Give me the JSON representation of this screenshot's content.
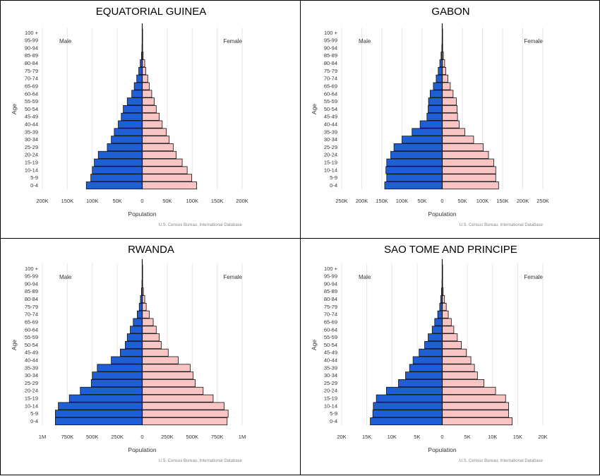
{
  "chart_data": [
    {
      "type": "bar",
      "title": "EQUATORIAL GUINEA",
      "male_label": "Male",
      "female_label": "Female",
      "ylabel": "Age",
      "xlabel": "Population",
      "source": "U.S. Census Bureau, International Database",
      "xlim": [
        -200000,
        200000
      ],
      "xticks": [
        -200000,
        -150000,
        -100000,
        -50000,
        0,
        50000,
        100000,
        150000,
        200000
      ],
      "xtick_labels": [
        "200K",
        "150K",
        "100K",
        "50K",
        "0",
        "50K",
        "100K",
        "150K",
        "200K"
      ],
      "categories": [
        "0-4",
        "5-9",
        "10-14",
        "15-19",
        "20-24",
        "25-29",
        "30-34",
        "35-39",
        "40-44",
        "45-49",
        "50-54",
        "55-59",
        "60-64",
        "65-69",
        "70-74",
        "75-79",
        "80-84",
        "85-89",
        "90-94",
        "95-99",
        "100 +"
      ],
      "series": [
        {
          "name": "Male",
          "color": "#1f5fd6",
          "values": [
            112000,
            103000,
            100000,
            96000,
            88000,
            70000,
            62000,
            56000,
            48000,
            42000,
            38000,
            30000,
            21000,
            16000,
            11000,
            7000,
            4000,
            1500,
            500,
            200,
            50
          ]
        },
        {
          "name": "Female",
          "color": "#f8c4c4",
          "values": [
            109000,
            99000,
            90000,
            80000,
            68000,
            62000,
            54000,
            48000,
            40000,
            34000,
            28000,
            24000,
            19000,
            14000,
            11000,
            7000,
            5000,
            2000,
            700,
            200,
            50
          ]
        }
      ]
    },
    {
      "type": "bar",
      "title": "GABON",
      "male_label": "Male",
      "female_label": "Female",
      "ylabel": "Age",
      "xlabel": "Population",
      "source": "U.S. Census Bureau, International Database",
      "xlim": [
        -250000,
        250000
      ],
      "xticks": [
        -250000,
        -200000,
        -150000,
        -100000,
        -50000,
        0,
        50000,
        100000,
        150000,
        200000,
        250000
      ],
      "xtick_labels": [
        "250K",
        "200K",
        "150K",
        "100K",
        "50K",
        "0",
        "50K",
        "100K",
        "150K",
        "200K",
        "250K"
      ],
      "categories": [
        "0-4",
        "5-9",
        "10-14",
        "15-19",
        "20-24",
        "25-29",
        "30-34",
        "35-39",
        "40-44",
        "45-49",
        "50-54",
        "55-59",
        "60-64",
        "65-69",
        "70-74",
        "75-79",
        "80-84",
        "85-89",
        "90-94",
        "95-99",
        "100 +"
      ],
      "series": [
        {
          "name": "Male",
          "color": "#1f5fd6",
          "values": [
            143000,
            138000,
            140000,
            138000,
            128000,
            120000,
            100000,
            75000,
            55000,
            38000,
            35000,
            34000,
            30000,
            22000,
            15000,
            10000,
            6000,
            3000,
            1000,
            300,
            100
          ]
        },
        {
          "name": "Female",
          "color": "#f8c4c4",
          "values": [
            140000,
            133000,
            133000,
            128000,
            115000,
            102000,
            78000,
            56000,
            42000,
            38000,
            37000,
            35000,
            27000,
            20000,
            14000,
            9000,
            6000,
            3000,
            1200,
            300,
            100
          ]
        }
      ]
    },
    {
      "type": "bar",
      "title": "RWANDA",
      "male_label": "Male",
      "female_label": "Female",
      "ylabel": "Age",
      "xlabel": "Population",
      "source": "U.S. Census Bureau, International Database",
      "xlim": [
        -1000000,
        1000000
      ],
      "xticks": [
        -1000000,
        -750000,
        -500000,
        -250000,
        0,
        250000,
        500000,
        750000,
        1000000
      ],
      "xtick_labels": [
        "1M",
        "750K",
        "500K",
        "250K",
        "0",
        "250K",
        "500K",
        "750K",
        "1M"
      ],
      "categories": [
        "0-4",
        "5-9",
        "10-14",
        "15-19",
        "20-24",
        "25-29",
        "30-34",
        "35-39",
        "40-44",
        "45-49",
        "50-54",
        "55-59",
        "60-64",
        "65-69",
        "70-74",
        "75-79",
        "80-84",
        "85-89",
        "90-94",
        "95-99",
        "100 +"
      ],
      "series": [
        {
          "name": "Male",
          "color": "#1f5fd6",
          "values": [
            870000,
            870000,
            840000,
            730000,
            620000,
            510000,
            500000,
            450000,
            310000,
            220000,
            170000,
            150000,
            120000,
            90000,
            50000,
            30000,
            18000,
            8000,
            3000,
            800,
            200
          ]
        },
        {
          "name": "Female",
          "color": "#f8c4c4",
          "values": [
            850000,
            860000,
            820000,
            710000,
            610000,
            530000,
            510000,
            480000,
            360000,
            260000,
            190000,
            170000,
            140000,
            110000,
            70000,
            40000,
            25000,
            12000,
            4000,
            1000,
            300
          ]
        }
      ]
    },
    {
      "type": "bar",
      "title": "SAO TOME AND PRINCIPE",
      "male_label": "Male",
      "female_label": "Female",
      "ylabel": "Age",
      "xlabel": "Population",
      "source": "U.S. Census Bureau, International Database",
      "xlim": [
        -20000,
        20000
      ],
      "xticks": [
        -20000,
        -15000,
        -10000,
        -5000,
        0,
        5000,
        10000,
        15000,
        20000
      ],
      "xtick_labels": [
        "20K",
        "15K",
        "10K",
        "5K",
        "0",
        "5K",
        "10K",
        "15K",
        "20K"
      ],
      "categories": [
        "0-4",
        "5-9",
        "10-14",
        "15-19",
        "20-24",
        "25-29",
        "30-34",
        "35-39",
        "40-44",
        "45-49",
        "50-54",
        "55-59",
        "60-64",
        "65-69",
        "70-74",
        "75-79",
        "80-84",
        "85-89",
        "90-94",
        "95-99",
        "100 +"
      ],
      "series": [
        {
          "name": "Male",
          "color": "#1f5fd6",
          "values": [
            14300,
            13800,
            13700,
            13100,
            11100,
            8700,
            7300,
            6500,
            5800,
            4600,
            3500,
            2800,
            2000,
            1500,
            900,
            500,
            300,
            150,
            50,
            20,
            5
          ]
        },
        {
          "name": "Female",
          "color": "#f8c4c4",
          "values": [
            13900,
            13200,
            13200,
            12600,
            10600,
            8300,
            7000,
            6400,
            5700,
            4800,
            3800,
            3000,
            2300,
            1800,
            1200,
            800,
            450,
            200,
            80,
            30,
            10
          ]
        }
      ]
    }
  ]
}
